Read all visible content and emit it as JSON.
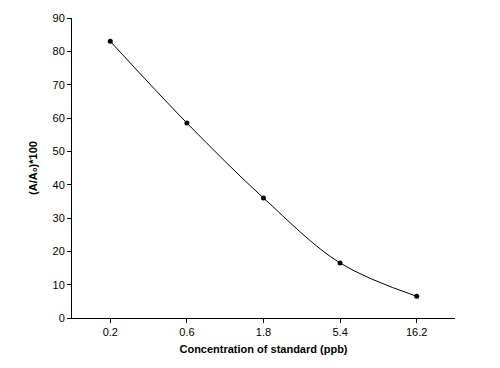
{
  "chart_data": {
    "type": "line",
    "x_label": "Concentration of standard (ppb)",
    "y_label": "(A/A₀)*100",
    "categories": [
      "0.2",
      "0.6",
      "1.8",
      "5.4",
      "16.2"
    ],
    "values": [
      83,
      58.5,
      36,
      16.5,
      6.5
    ],
    "color": "#000000",
    "marker": "circle",
    "line_style": "solid",
    "ylim": [
      0,
      90
    ],
    "yticks": [
      0,
      10,
      20,
      30,
      40,
      50,
      60,
      70,
      80,
      90
    ],
    "grid": false
  }
}
